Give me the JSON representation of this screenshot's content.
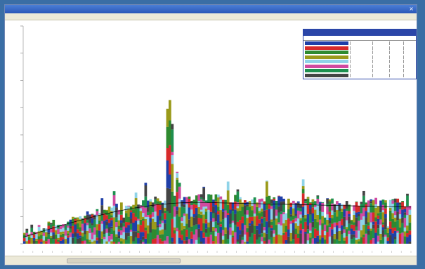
{
  "window": {
    "title": "",
    "close_glyph": "×"
  },
  "status": {
    "left": "",
    "right": ""
  },
  "colors": {
    "series": [
      "#1f3fa8",
      "#d72a2a",
      "#2f8a2f",
      "#9a9a1a",
      "#8fd3e8",
      "#d04aa0",
      "#1e8f4f",
      "#444444"
    ],
    "baseline": "#000000"
  },
  "chart_data": {
    "type": "bar",
    "stacked": true,
    "title": "",
    "xlabel": "",
    "ylabel": "",
    "ylim": [
      0,
      100
    ],
    "x_count": 160,
    "peaks": [
      {
        "x": 60,
        "y": 66
      },
      {
        "x": 59,
        "y": 62
      },
      {
        "x": 61,
        "y": 55
      },
      {
        "x": 63,
        "y": 33
      },
      {
        "x": 64,
        "y": 28
      },
      {
        "x": 50,
        "y": 28
      },
      {
        "x": 51,
        "y": 20
      },
      {
        "x": 100,
        "y": 29
      },
      {
        "x": 101,
        "y": 22
      },
      {
        "x": 41,
        "y": 12
      },
      {
        "x": 108,
        "y": 14
      },
      {
        "x": 124,
        "y": 12
      },
      {
        "x": 135,
        "y": 11
      },
      {
        "x": 150,
        "y": 8
      }
    ],
    "legend": {
      "placement": "top-right",
      "series_count": 8
    }
  }
}
